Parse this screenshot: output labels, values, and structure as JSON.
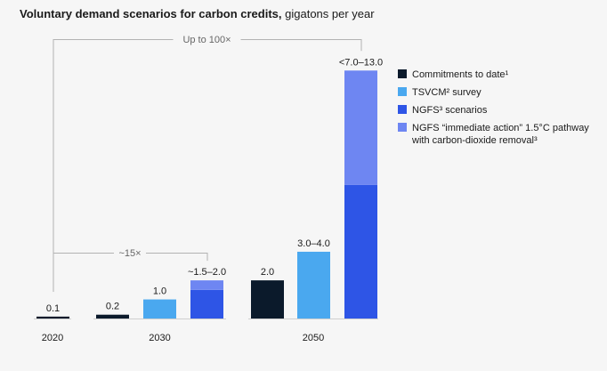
{
  "chart_data": {
    "type": "bar",
    "title": "Voluntary demand scenarios for carbon credits,",
    "title_unit": " gigatons per year",
    "colors": {
      "commitments": "#0b1a2b",
      "tsvcm": "#4aa8ef",
      "ngfs": "#2e55e6",
      "ngfs_immediate": "#6e86f2",
      "bracket": "#b3b3b3",
      "baseline": "#cfcfcf"
    },
    "legend": {
      "position": "right",
      "entries": [
        {
          "key": "commitments",
          "label": "Commitments to date¹"
        },
        {
          "key": "tsvcm",
          "label": "TSVCM² survey"
        },
        {
          "key": "ngfs",
          "label": "NGFS³ scenarios"
        },
        {
          "key": "ngfs_immediate",
          "label": "NGFS “immediate action” 1.5°C pathway",
          "label2": "with carbon-dioxide removal³"
        }
      ]
    },
    "year_groups": [
      {
        "year": "2020",
        "bars": [
          {
            "series": "commitments",
            "value": 0.1,
            "label": "0.1"
          }
        ]
      },
      {
        "year": "2030",
        "bars": [
          {
            "series": "commitments",
            "value": 0.2,
            "label": "0.2"
          },
          {
            "series": "tsvcm",
            "value": 1.0,
            "label": "1.0"
          },
          {
            "series": "ngfs",
            "value": 1.5,
            "value_top": 2.0,
            "top_series": "ngfs_immediate",
            "label": "~1.5–2.0"
          }
        ]
      },
      {
        "year": "2050",
        "bars": [
          {
            "series": "commitments",
            "value": 2.0,
            "label": "2.0"
          },
          {
            "series": "tsvcm",
            "value": 3.5,
            "label": "3.0–4.0"
          },
          {
            "series": "ngfs",
            "value": 7.0,
            "value_top": 13.0,
            "top_series": "ngfs_immediate",
            "label": "<7.0–13.0"
          }
        ]
      }
    ],
    "annotations": [
      {
        "label": "~15×",
        "from": "2020",
        "to": "2030-ngfs"
      },
      {
        "label": "Up to 100×",
        "from": "2020",
        "to": "2050-ngfs"
      }
    ],
    "ylim": [
      0,
      13.2
    ]
  }
}
